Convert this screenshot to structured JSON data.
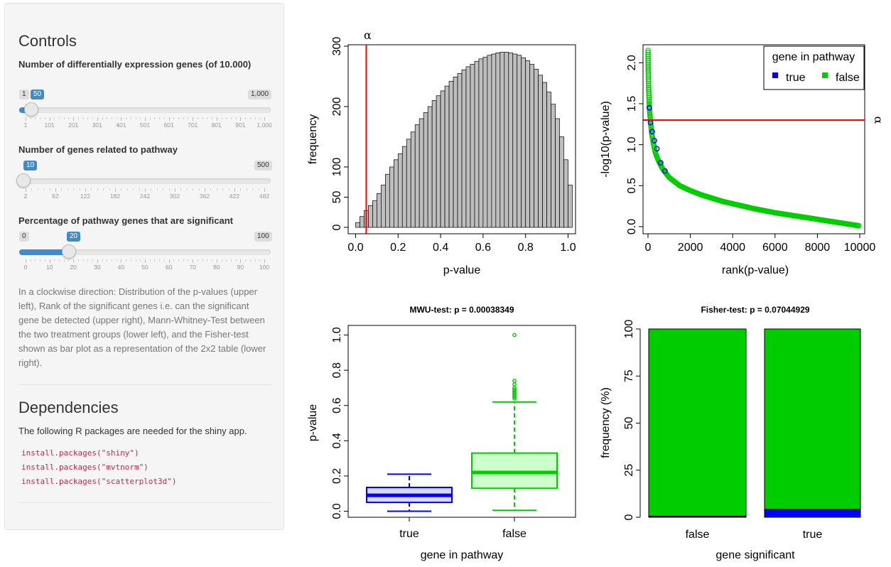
{
  "sidebar": {
    "controls_title": "Controls",
    "slider1": {
      "label": "Number of differentially expression genes (of 10.000)",
      "min_label": "1",
      "value_label": "50",
      "max_label": "1,000",
      "value": 50,
      "min": 1,
      "max": 1000,
      "ticks": [
        "1",
        "101",
        "201",
        "301",
        "401",
        "501",
        "601",
        "701",
        "801",
        "901",
        "1,000"
      ]
    },
    "slider2": {
      "label": "Number of genes related to pathway",
      "value_label": "10",
      "max_label": "500",
      "value": 10,
      "min": 2,
      "max": 500,
      "ticks": [
        "2",
        "62",
        "122",
        "182",
        "242",
        "302",
        "362",
        "422",
        "482"
      ]
    },
    "slider3": {
      "label": "Percentage of pathway genes that are significant",
      "min_label": "0",
      "value_label": "20",
      "max_label": "100",
      "value": 20,
      "min": 0,
      "max": 100,
      "ticks": [
        "0",
        "10",
        "20",
        "30",
        "40",
        "50",
        "60",
        "70",
        "80",
        "90",
        "100"
      ]
    },
    "description": "In a clockwise direction: Distribution of the p-values (upper left), Rank of the significant genes i.e. can the significant gene be detected (upper right), Mann-Whitney-Test between the two treatment groups (lower left), and the Fisher-test shown as bar plot as a representation of the 2x2 table (lower right).",
    "dependencies_title": "Dependencies",
    "dependencies_text": "The following R packages are needed for the shiny app.",
    "code_lines": [
      "install.packages(\"shiny\")",
      "install.packages(\"mvtnorm\")",
      "install.packages(\"scatterplot3d\")"
    ]
  },
  "chart_data": [
    {
      "type": "bar",
      "xlabel": "p-value",
      "ylabel": "frequency",
      "xlim": [
        0,
        1
      ],
      "ylim": [
        0,
        300
      ],
      "x_ticks": [
        "0.0",
        "0.2",
        "0.4",
        "0.6",
        "0.8",
        "1.0"
      ],
      "y_ticks": [
        "0",
        "50",
        "100",
        "200",
        "300"
      ],
      "bin_width": 0.02,
      "values": [
        8,
        18,
        28,
        36,
        44,
        56,
        70,
        88,
        100,
        112,
        122,
        134,
        146,
        158,
        170,
        180,
        190,
        200,
        210,
        218,
        226,
        234,
        242,
        249,
        255,
        261,
        266,
        270,
        275,
        279,
        282,
        285,
        287,
        289,
        290,
        290,
        289,
        287,
        285,
        281,
        276,
        270,
        262,
        252,
        240,
        224,
        204,
        180,
        150,
        112,
        70
      ],
      "annotations": [
        {
          "label": "α",
          "x": 0.05
        }
      ],
      "colors": {
        "bars": "#bebebe",
        "alpha_line": "#ff0000"
      }
    },
    {
      "type": "scatter",
      "xlabel": "rank(p-value)",
      "ylabel": "-log10(p-value)",
      "xlim": [
        0,
        10000
      ],
      "ylim": [
        0,
        2.2
      ],
      "x_ticks": [
        "0",
        "2000",
        "4000",
        "6000",
        "8000",
        "10000"
      ],
      "y_ticks": [
        "0.0",
        "0.5",
        "1.0",
        "1.5",
        "2.0"
      ],
      "legend": {
        "title": "gene in pathway",
        "entries": [
          "true",
          "false"
        ],
        "placement": "top-right"
      },
      "series": [
        {
          "name": "true",
          "color": "#0000ff",
          "x": [
            60,
            120,
            200,
            300,
            420,
            600,
            800
          ],
          "y": [
            1.45,
            1.27,
            1.16,
            1.05,
            0.95,
            0.78,
            0.68
          ]
        },
        {
          "name": "false",
          "color": "#00cd00",
          "x": [
            1,
            5,
            10,
            20,
            30,
            50,
            80,
            120,
            170,
            250,
            350,
            500,
            700,
            1000,
            1500,
            2000,
            2500,
            3000,
            3500,
            4000,
            5000,
            6000,
            7000,
            8000,
            9000,
            10000
          ],
          "y": [
            2.15,
            2.0,
            1.9,
            1.8,
            1.7,
            1.55,
            1.4,
            1.28,
            1.15,
            1.02,
            0.9,
            0.8,
            0.7,
            0.6,
            0.5,
            0.44,
            0.39,
            0.35,
            0.31,
            0.28,
            0.22,
            0.17,
            0.13,
            0.09,
            0.05,
            0.01
          ]
        }
      ],
      "annotations": [
        {
          "label": "α",
          "y": 1.3
        }
      ]
    },
    {
      "type": "box",
      "title": "MWU-test: p = 0.00038349",
      "xlabel": "gene in pathway",
      "ylabel": "p-value",
      "categories": [
        "true",
        "false"
      ],
      "ylim": [
        0,
        1
      ],
      "y_ticks": [
        "0.0",
        "0.2",
        "0.4",
        "0.6",
        "0.8",
        "1.0"
      ],
      "boxes": [
        {
          "name": "true",
          "min": 0.0,
          "q1": 0.05,
          "median": 0.09,
          "q3": 0.135,
          "max": 0.21,
          "outliers": [],
          "color": "#0000ff",
          "fill": "#d6d6ff"
        },
        {
          "name": "false",
          "min": 0.005,
          "q1": 0.13,
          "median": 0.22,
          "q3": 0.33,
          "max": 0.62,
          "outliers": [
            0.64,
            0.65,
            0.66,
            0.67,
            0.68,
            0.69,
            0.7,
            0.72,
            0.74,
            1.0
          ],
          "color": "#00cd00",
          "fill": "#ccffcc"
        }
      ]
    },
    {
      "type": "bar",
      "title": "Fisher-test: p = 0.07044929",
      "xlabel": "gene significant",
      "ylabel": "frequency (%)",
      "categories": [
        "false",
        "true"
      ],
      "ylim": [
        0,
        100
      ],
      "y_ticks": [
        "0",
        "25",
        "50",
        "75",
        "100"
      ],
      "series": [
        {
          "name": "true",
          "color": "#0000ff",
          "values": [
            0.6,
            4.2
          ]
        },
        {
          "name": "false",
          "color": "#00cd00",
          "values": [
            99.4,
            95.8
          ]
        }
      ]
    }
  ]
}
